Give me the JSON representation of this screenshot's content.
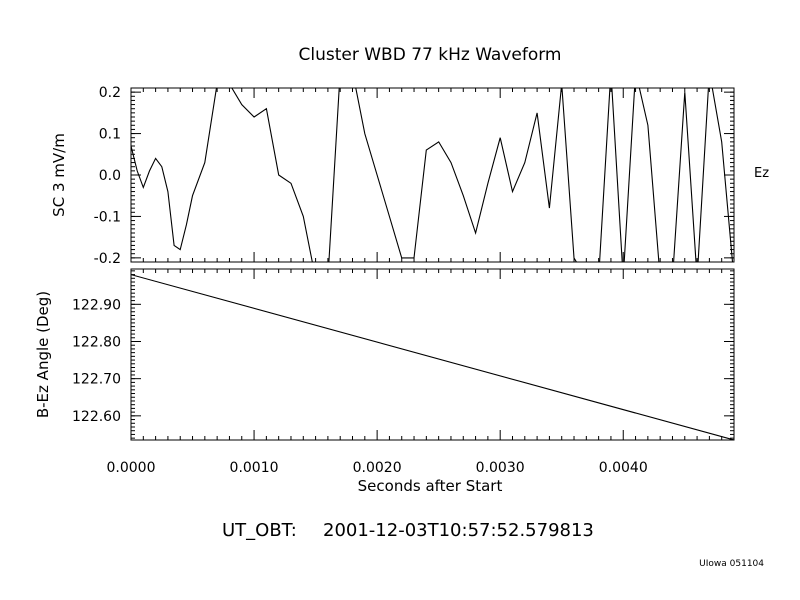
{
  "chart_data": [
    {
      "type": "line",
      "title": "Cluster WBD 77 kHz Waveform",
      "ylabel": "SC 3 mV/m",
      "series_label": "Ez",
      "ylim": [
        -0.21,
        0.21
      ],
      "yticks": [
        -0.2,
        -0.1,
        0.0,
        0.1,
        0.2
      ],
      "ytick_labels": [
        "-0.2",
        "-0.1",
        "0.0",
        "0.1",
        "0.2"
      ],
      "xlim": [
        0.0,
        0.0049
      ],
      "series": [
        {
          "x": [
            0.0,
            5e-05,
            0.0001,
            0.00015,
            0.0002,
            0.00025,
            0.0003,
            0.00035,
            0.0004,
            0.00045,
            0.0005,
            0.0006,
            0.0007,
            0.0008,
            0.0009,
            0.001,
            0.0011,
            0.0012,
            0.0013,
            0.0014,
            0.0015,
            0.0016,
            0.0017,
            0.0018,
            0.0019,
            0.002,
            0.0021,
            0.0022,
            0.0023,
            0.0024,
            0.0025,
            0.0026,
            0.0027,
            0.0028,
            0.0029,
            0.003,
            0.0031,
            0.0032,
            0.0033,
            0.0034,
            0.0035,
            0.0036,
            0.0037,
            0.0038,
            0.0039,
            0.004,
            0.0041,
            0.0042,
            0.0043,
            0.0044,
            0.0045,
            0.0046,
            0.0047,
            0.0048,
            0.0049
          ],
          "values": [
            0.07,
            0.01,
            -0.03,
            0.01,
            0.04,
            0.02,
            -0.04,
            -0.17,
            -0.18,
            -0.12,
            -0.05,
            0.03,
            0.22,
            0.22,
            0.17,
            0.14,
            0.16,
            0.0,
            -0.02,
            -0.1,
            -0.25,
            -0.25,
            0.25,
            0.25,
            0.1,
            0.0,
            -0.1,
            -0.2,
            -0.2,
            0.06,
            0.08,
            0.03,
            -0.05,
            -0.14,
            -0.02,
            0.09,
            -0.04,
            0.03,
            0.15,
            -0.08,
            0.22,
            -0.2,
            -0.25,
            -0.25,
            0.25,
            -0.25,
            0.25,
            0.12,
            -0.25,
            -0.25,
            0.2,
            -0.25,
            0.25,
            0.08,
            -0.25
          ]
        }
      ]
    },
    {
      "type": "line",
      "ylabel": "B-Ez Angle (Deg)",
      "ylim": [
        122.535,
        122.995
      ],
      "yticks": [
        122.6,
        122.7,
        122.8,
        122.9
      ],
      "ytick_labels": [
        "122.60",
        "122.70",
        "122.80",
        "122.90"
      ],
      "xlim": [
        0.0,
        0.0049
      ],
      "xticks": [
        0.0,
        0.001,
        0.002,
        0.003,
        0.004
      ],
      "xtick_labels": [
        "0.0000",
        "0.0010",
        "0.0020",
        "0.0030",
        "0.0040"
      ],
      "xlabel": "Seconds after Start",
      "series": [
        {
          "x": [
            0.0,
            0.0049
          ],
          "values": [
            122.98,
            122.535
          ]
        }
      ]
    }
  ],
  "footer": {
    "ut_label": "UT_OBT:",
    "ut_value": "2001-12-03T10:57:52.579813",
    "credit": "UIowa 051104"
  }
}
